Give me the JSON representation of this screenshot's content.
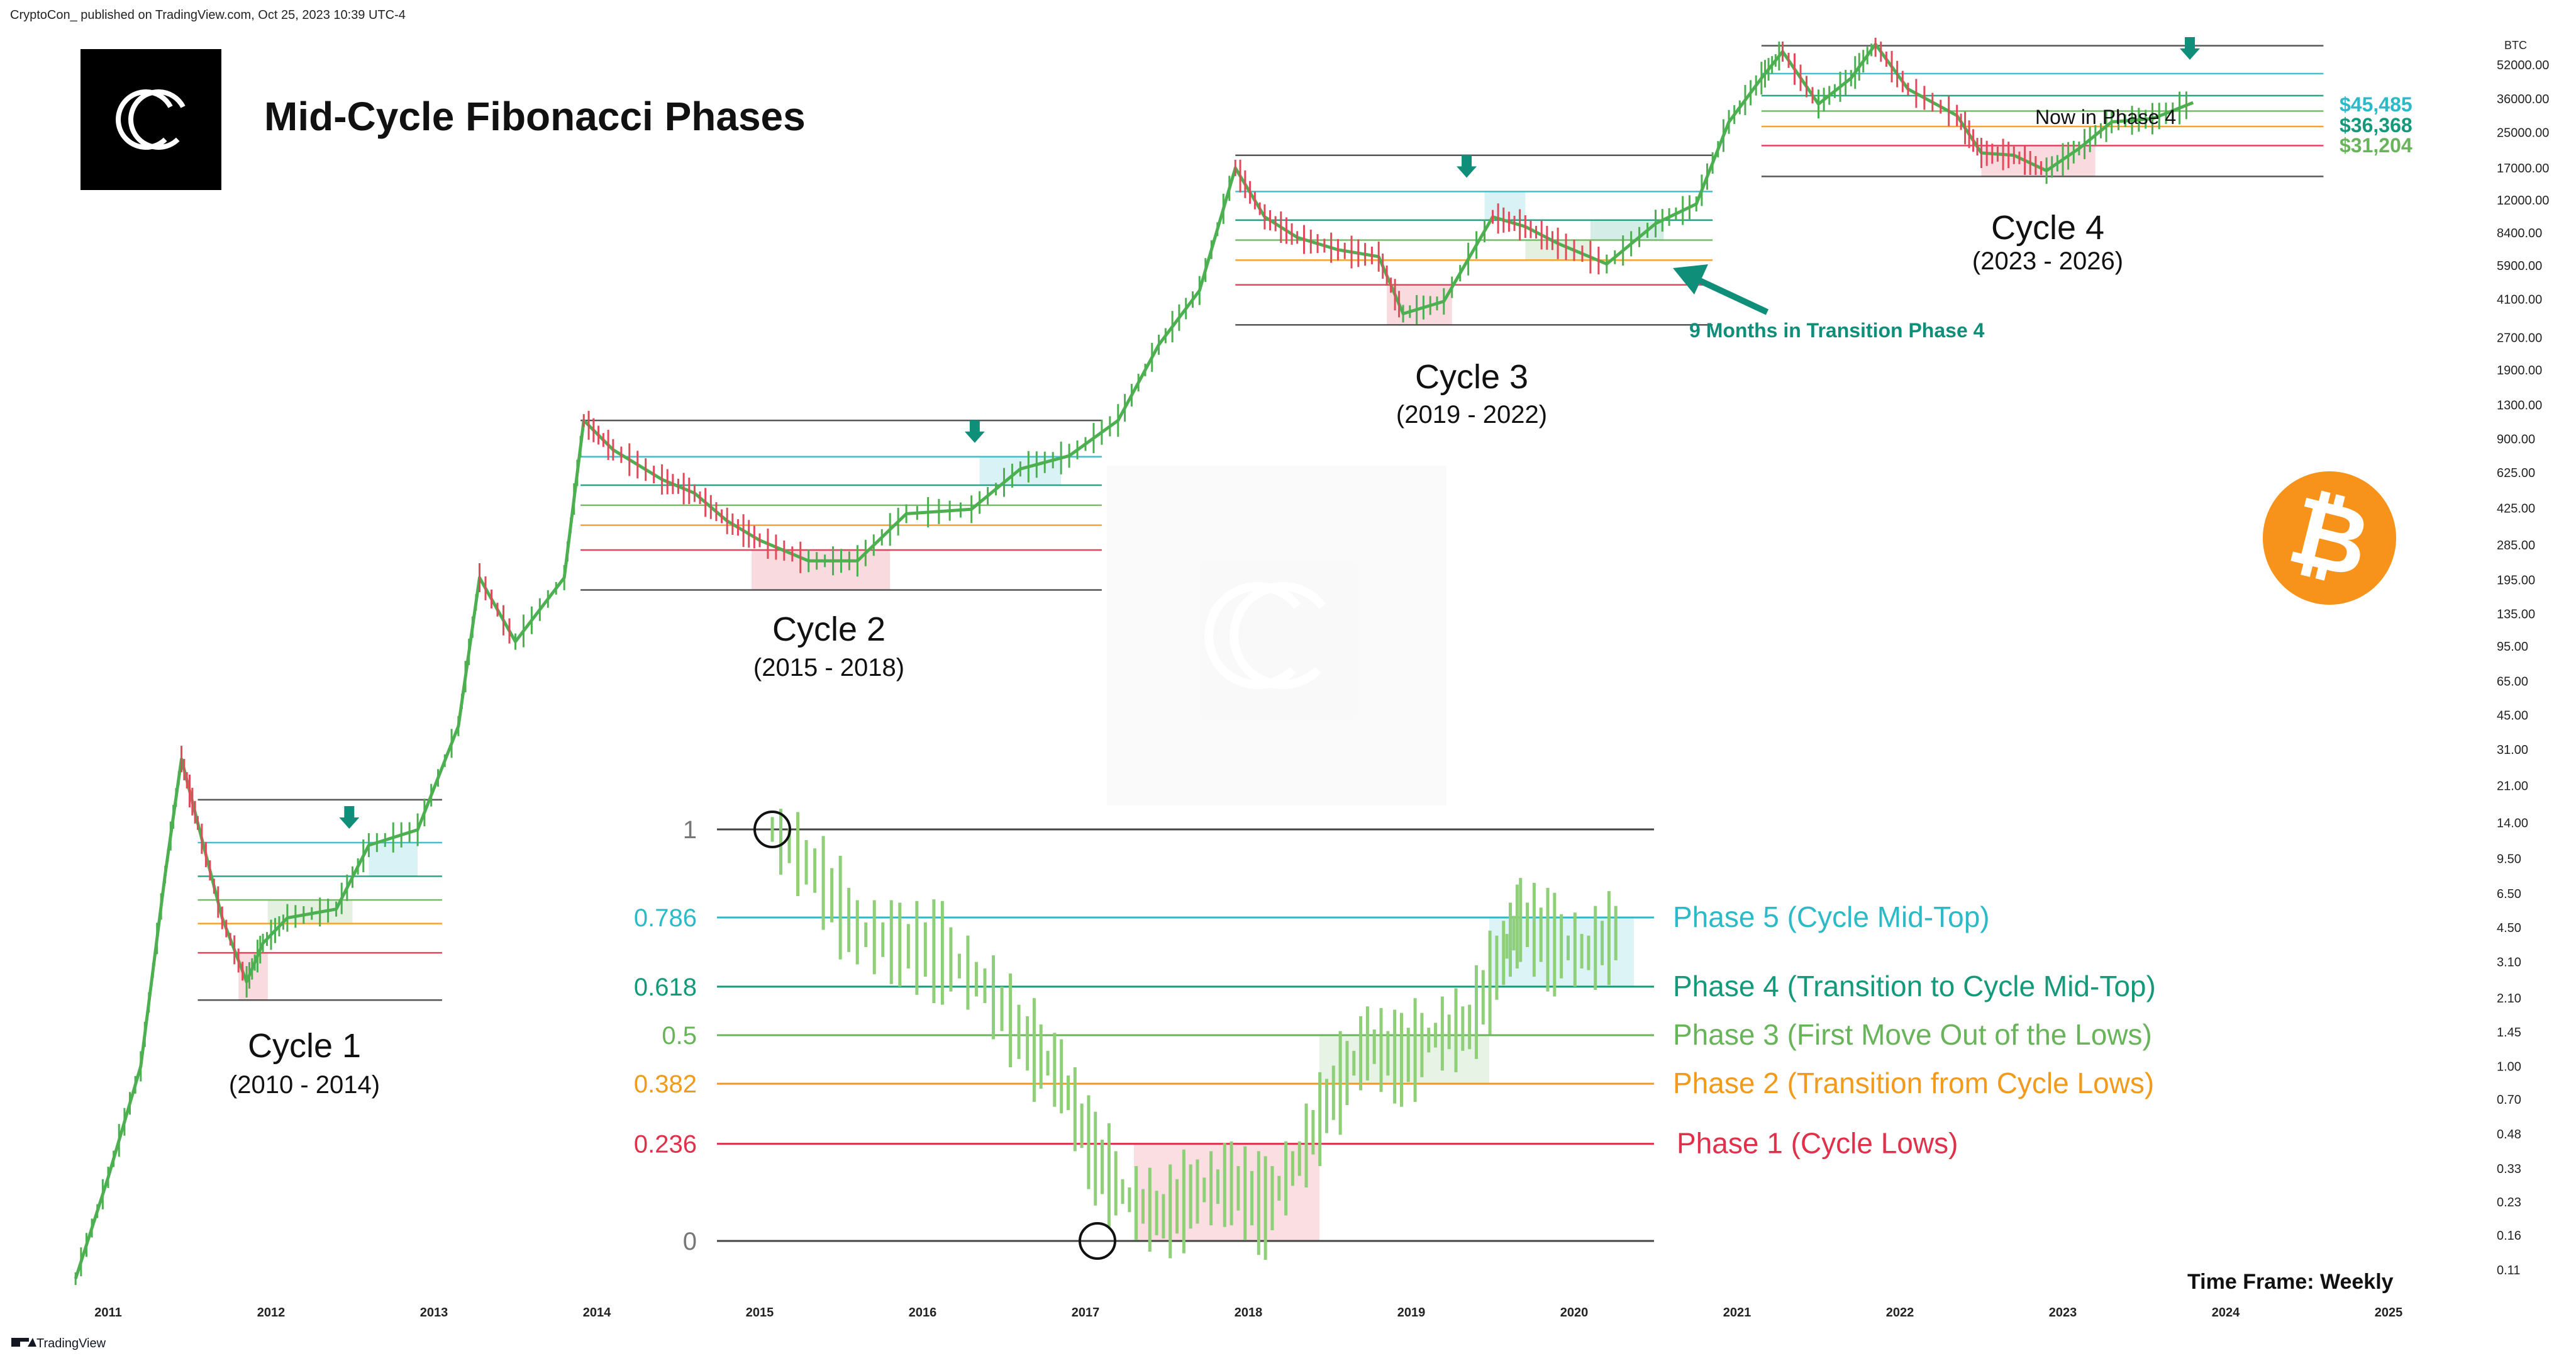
{
  "header": {
    "publisher": "CryptoCon_ published on TradingView.com, Oct 25, 2023 10:39 UTC-4",
    "title": "Mid-Cycle Fibonacci Phases"
  },
  "footer": {
    "brand": "TradingView",
    "timeframe": "Time Frame: Weekly"
  },
  "colors": {
    "up": "#4caf50",
    "down": "#e04a5a",
    "phase1": "#e0314b",
    "phase2": "#f29a1c",
    "phase3": "#69b45a",
    "phase4": "#149a7a",
    "phase5": "#2cb9c8",
    "grey": "#444444",
    "annotation": "#0f8f79"
  },
  "chart_data": {
    "type": "line",
    "scale": "log",
    "currency_label": "BTC",
    "x_ticks": [
      "2011",
      "2012",
      "2013",
      "2014",
      "2015",
      "2016",
      "2017",
      "2018",
      "2019",
      "2020",
      "2021",
      "2022",
      "2023",
      "2024",
      "2025"
    ],
    "y_ticks": [
      "52000.00",
      "36000.00",
      "25000.00",
      "17000.00",
      "12000.00",
      "8400.00",
      "5900.00",
      "4100.00",
      "2700.00",
      "1900.00",
      "1300.00",
      "900.00",
      "625.00",
      "425.00",
      "285.00",
      "195.00",
      "135.00",
      "95.00",
      "65.00",
      "45.00",
      "31.00",
      "21.00",
      "14.00",
      "9.50",
      "6.50",
      "4.50",
      "3.10",
      "2.10",
      "1.45",
      "1.00",
      "0.70",
      "0.48",
      "0.33",
      "0.23",
      "0.16",
      "0.11"
    ],
    "price_series": {
      "name": "BTC",
      "x": [
        2010.8,
        2011.0,
        2011.2,
        2011.35,
        2011.45,
        2011.55,
        2011.7,
        2011.85,
        2011.95,
        2012.1,
        2012.4,
        2012.6,
        2012.9,
        2013.15,
        2013.28,
        2013.5,
        2013.8,
        2013.92,
        2014.1,
        2014.4,
        2014.6,
        2014.8,
        2015.0,
        2015.3,
        2015.6,
        2015.9,
        2016.3,
        2016.6,
        2016.9,
        2017.2,
        2017.45,
        2017.7,
        2017.92,
        2018.1,
        2018.3,
        2018.55,
        2018.8,
        2018.95,
        2019.2,
        2019.5,
        2019.7,
        2019.9,
        2020.2,
        2020.5,
        2020.75,
        2020.95,
        2021.15,
        2021.28,
        2021.5,
        2021.7,
        2021.85,
        2022.05,
        2022.35,
        2022.5,
        2022.7,
        2022.9,
        2023.1,
        2023.3,
        2023.55,
        2023.8
      ],
      "y": [
        0.1,
        0.3,
        1.0,
        8.0,
        28.0,
        14.0,
        5.0,
        2.5,
        3.8,
        5.0,
        5.5,
        11.0,
        13.0,
        40.0,
        200.0,
        100.0,
        200.0,
        1100.0,
        800.0,
        580.0,
        500.0,
        370.0,
        300.0,
        240.0,
        240.0,
        400.0,
        420.0,
        650.0,
        750.0,
        1100.0,
        2500.0,
        4500.0,
        17000.0,
        10000.0,
        8000.0,
        7000.0,
        6500.0,
        3500.0,
        4000.0,
        10000.0,
        9000.0,
        7500.0,
        6000.0,
        9300.0,
        11500.0,
        28000.0,
        45000.0,
        60000.0,
        34000.0,
        45000.0,
        65000.0,
        40000.0,
        30000.0,
        20000.0,
        19500.0,
        16500.0,
        21000.0,
        28000.0,
        29000.0,
        34500.0
      ]
    },
    "cycles": [
      {
        "label": "Cycle 1",
        "years": "(2010 - 2014)"
      },
      {
        "label": "Cycle 2",
        "years": "(2015 - 2018)"
      },
      {
        "label": "Cycle 3",
        "years": "(2019 - 2022)"
      },
      {
        "label": "Cycle 4",
        "years": "(2023 - 2026)"
      }
    ],
    "fib_levels": [
      "1",
      "0.786",
      "0.618",
      "0.5",
      "0.382",
      "0.236",
      "0"
    ],
    "phases": [
      {
        "label": "Phase 5 (Cycle Mid-Top)",
        "level": "0.786"
      },
      {
        "label": "Phase 4 (Transition to Cycle Mid-Top)",
        "level": "0.618"
      },
      {
        "label": "Phase 3 (First Move Out of the Lows)",
        "level": "0.5"
      },
      {
        "label": "Phase 2 (Transition from Cycle Lows)",
        "level": "0.382"
      },
      {
        "label": "Phase 1 (Cycle Lows)",
        "level": "0.236"
      }
    ],
    "price_labels": [
      "$45,485",
      "$36,368",
      "$31,204"
    ],
    "annotations": {
      "now": "Now in Phase 4",
      "transition": "9 Months in Transition Phase 4"
    }
  }
}
